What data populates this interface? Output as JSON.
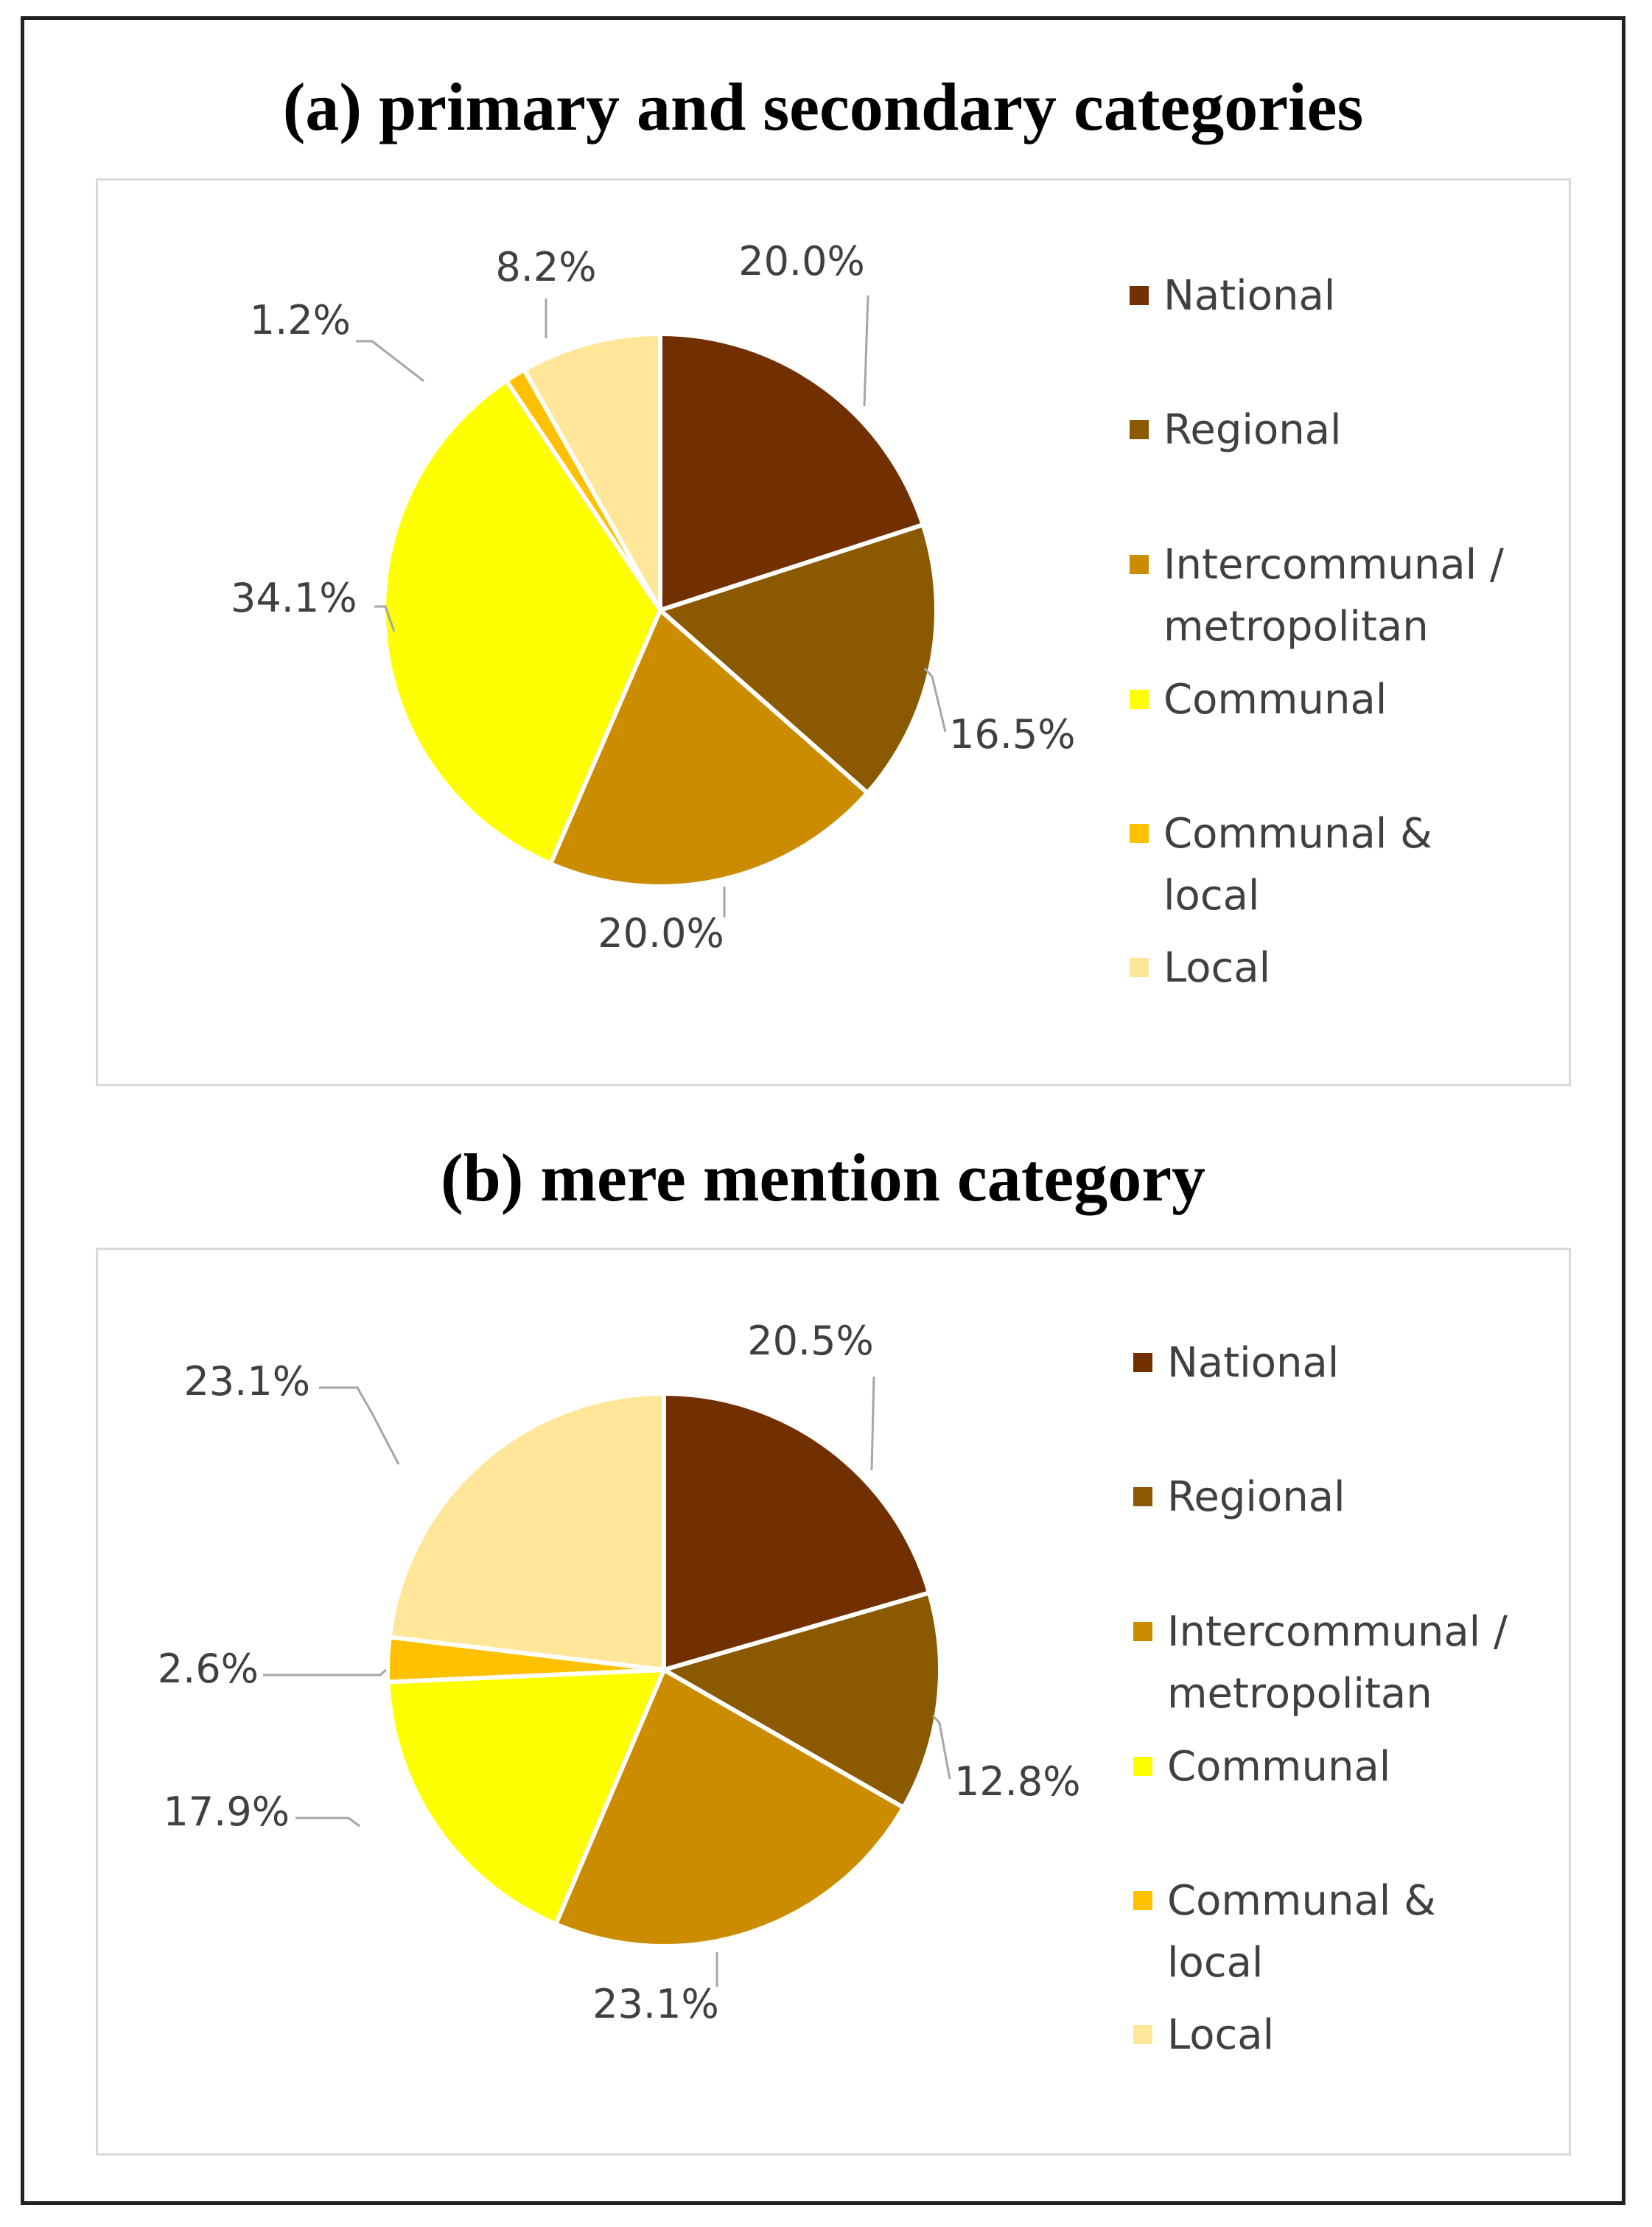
{
  "chart_data": [
    {
      "type": "pie",
      "title": "(a) primary and secondary categories",
      "categories": [
        "National",
        "Regional",
        "Intercommunal / metropolitan",
        "Communal",
        "Communal & local",
        "Local"
      ],
      "values": [
        20.0,
        16.5,
        20.0,
        34.1,
        1.2,
        8.2
      ],
      "value_labels": [
        "20.0%",
        "16.5%",
        "20.0%",
        "34.1%",
        "1.2%",
        "8.2%"
      ],
      "legend_lines": [
        [
          "National"
        ],
        [
          "Regional"
        ],
        [
          "Intercommunal /",
          "metropolitan"
        ],
        [
          "Communal"
        ],
        [
          "Communal &",
          "local"
        ],
        [
          "Local"
        ]
      ],
      "colors": [
        "#722f00",
        "#8b5a00",
        "#cc8c00",
        "#ffff00",
        "#ffc000",
        "#ffe699"
      ],
      "legend_position": "right"
    },
    {
      "type": "pie",
      "title": "(b) mere mention category",
      "categories": [
        "National",
        "Regional",
        "Intercommunal / metropolitan",
        "Communal",
        "Communal & local",
        "Local"
      ],
      "values": [
        20.5,
        12.8,
        23.1,
        17.9,
        2.6,
        23.1
      ],
      "value_labels": [
        "20.5%",
        "12.8%",
        "23.1%",
        "17.9%",
        "2.6%",
        "23.1%"
      ],
      "legend_lines": [
        [
          "National"
        ],
        [
          "Regional"
        ],
        [
          "Intercommunal /",
          "metropolitan"
        ],
        [
          "Communal"
        ],
        [
          "Communal &",
          "local"
        ],
        [
          "Local"
        ]
      ],
      "colors": [
        "#722f00",
        "#8b5a00",
        "#cc8c00",
        "#ffff00",
        "#ffc000",
        "#ffe699"
      ],
      "legend_position": "right"
    }
  ]
}
